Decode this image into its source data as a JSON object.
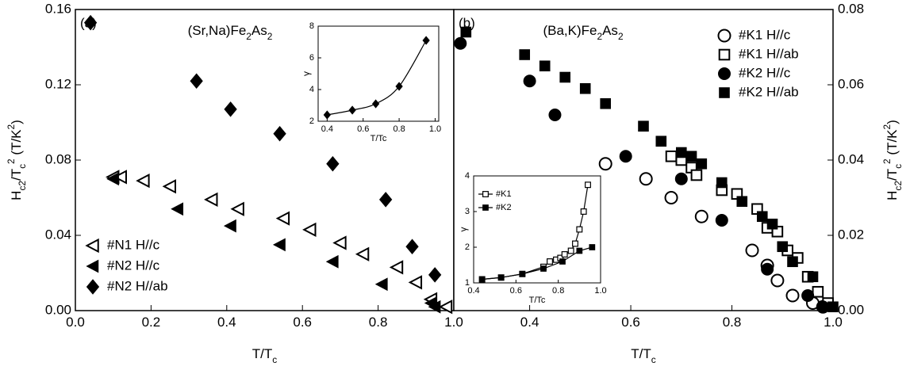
{
  "chart_data": [
    {
      "type": "scatter",
      "panel_label": "(a)",
      "title_parts": [
        "(Sr,Na)Fe",
        "2",
        "As",
        "2"
      ],
      "title_styles": [
        "normal",
        "sub",
        "normal",
        "sub"
      ],
      "xlabel_parts": [
        "T/T",
        "c"
      ],
      "xlabel_styles": [
        "normal",
        "sub"
      ],
      "ylabel_parts": [
        "H",
        "c2",
        "/T",
        "c",
        "2",
        " (T/K",
        "2",
        ")"
      ],
      "ylabel_styles": [
        "normal",
        "sub",
        "normal",
        "sub",
        "super",
        "normal",
        "super",
        "normal"
      ],
      "xlim": [
        0,
        1
      ],
      "xticks": [
        {
          "value": 0,
          "label": "0.0"
        },
        0.2,
        0.4,
        0.6,
        0.8,
        {
          "value": 1,
          "label": "1.0"
        }
      ],
      "ylim": [
        0,
        0.16
      ],
      "yticks": [
        {
          "value": 0,
          "label": "0.00"
        },
        0.04,
        0.08,
        0.12,
        0.16
      ],
      "yaxis_side": "left",
      "legend": "lower left",
      "series": [
        {
          "name": "#N1 H//c",
          "marker": "triangle-left-open",
          "color": "#000000",
          "x": [
            0.1,
            0.12,
            0.18,
            0.25,
            0.36,
            0.43,
            0.55,
            0.62,
            0.7,
            0.76,
            0.85,
            0.9,
            0.94,
            0.98
          ],
          "values": [
            0.071,
            0.071,
            0.069,
            0.066,
            0.059,
            0.054,
            0.049,
            0.043,
            0.036,
            0.03,
            0.023,
            0.015,
            0.006,
            0.002
          ]
        },
        {
          "name": "#N2 H//c",
          "marker": "triangle-left",
          "color": "#000000",
          "x": [
            0.1,
            0.27,
            0.41,
            0.54,
            0.68,
            0.81,
            0.94,
            0.95
          ],
          "values": [
            0.07,
            0.054,
            0.045,
            0.035,
            0.026,
            0.014,
            0.004,
            0.002
          ]
        },
        {
          "name": "#N2 H//ab",
          "marker": "diamond",
          "color": "#000000",
          "x": [
            0.04,
            0.32,
            0.41,
            0.54,
            0.68,
            0.82,
            0.89,
            0.95
          ],
          "values": [
            0.153,
            0.122,
            0.107,
            0.094,
            0.078,
            0.059,
            0.034,
            0.019
          ]
        }
      ]
    },
    {
      "type": "scatter",
      "xlabel": "T/Tc",
      "ylabel": "γ",
      "xlim": [
        0.35,
        1.02
      ],
      "xticks": [
        0.4,
        0.6,
        0.8,
        {
          "value": 1,
          "label": "1.0"
        }
      ],
      "ylim": [
        2,
        8
      ],
      "yticks": [
        2,
        4,
        6,
        8
      ],
      "yaxis_side": "left",
      "series": [
        {
          "marker": "diamond",
          "color": "#000000",
          "line": "smooth",
          "x": [
            0.4,
            0.54,
            0.67,
            0.8,
            0.95
          ],
          "values": [
            2.4,
            2.7,
            3.1,
            4.2,
            7.1
          ]
        }
      ]
    },
    {
      "type": "scatter",
      "panel_label": "(b)",
      "title_parts": [
        "(Ba,K)Fe",
        "2",
        "As",
        "2"
      ],
      "title_styles": [
        "normal",
        "sub",
        "normal",
        "sub"
      ],
      "xlabel_parts": [
        "T/T",
        "c"
      ],
      "xlabel_styles": [
        "normal",
        "sub"
      ],
      "ylabel_parts": [
        "H",
        "c2",
        "/T",
        "c",
        "2",
        " (T/K",
        "2",
        ")"
      ],
      "ylabel_styles": [
        "normal",
        "sub",
        "normal",
        "sub",
        "super",
        "normal",
        "super",
        "normal"
      ],
      "xlim": [
        0.25,
        1
      ],
      "xticks": [
        0.4,
        0.6,
        0.8,
        {
          "value": 1,
          "label": "1.0"
        }
      ],
      "ylim": [
        0,
        0.08
      ],
      "yticks": [
        {
          "value": 0,
          "label": "0.00"
        },
        0.02,
        0.04,
        0.06,
        0.08
      ],
      "yaxis_side": "right",
      "legend": "upper right",
      "series": [
        {
          "name": "#K1 H//c",
          "marker": "circle-open",
          "color": "#000000",
          "x": [
            0.55,
            0.63,
            0.68,
            0.74,
            0.84,
            0.87,
            0.89,
            0.92,
            0.96,
            0.98
          ],
          "values": [
            0.039,
            0.035,
            0.03,
            0.025,
            0.016,
            0.012,
            0.008,
            0.004,
            0.002,
            0.001
          ]
        },
        {
          "name": "#K1 H//ab",
          "marker": "square-open",
          "color": "#000000",
          "x": [
            0.68,
            0.7,
            0.72,
            0.73,
            0.78,
            0.81,
            0.85,
            0.87,
            0.89,
            0.91,
            0.93,
            0.95,
            0.97,
            0.99
          ],
          "values": [
            0.041,
            0.04,
            0.038,
            0.036,
            0.032,
            0.031,
            0.027,
            0.022,
            0.021,
            0.016,
            0.014,
            0.009,
            0.005,
            0.002
          ]
        },
        {
          "name": "#K2 H//c",
          "marker": "circle",
          "color": "#000000",
          "x": [
            0.263,
            0.4,
            0.45,
            0.59,
            0.7,
            0.78,
            0.87,
            0.95,
            0.98
          ],
          "values": [
            0.071,
            0.061,
            0.052,
            0.041,
            0.035,
            0.024,
            0.011,
            0.004,
            0.001
          ]
        },
        {
          "name": "#K2 H//ab",
          "marker": "square",
          "color": "#000000",
          "x": [
            0.274,
            0.39,
            0.43,
            0.47,
            0.51,
            0.55,
            0.625,
            0.66,
            0.7,
            0.72,
            0.74,
            0.78,
            0.82,
            0.86,
            0.88,
            0.9,
            0.92,
            0.96,
            1.0
          ],
          "values": [
            0.074,
            0.068,
            0.065,
            0.062,
            0.059,
            0.055,
            0.049,
            0.045,
            0.042,
            0.041,
            0.039,
            0.034,
            0.029,
            0.025,
            0.023,
            0.017,
            0.013,
            0.009,
            0.001
          ]
        }
      ]
    },
    {
      "type": "scatter",
      "xlabel": "T/Tc",
      "ylabel": "γ",
      "xlim": [
        0.4,
        1
      ],
      "xticks": [
        0.4,
        0.6,
        0.8,
        {
          "value": 1,
          "label": "1.0"
        }
      ],
      "ylim": [
        1,
        4
      ],
      "yticks": [
        1,
        2,
        3,
        4
      ],
      "yaxis_side": "left",
      "legend": "upper left",
      "series": [
        {
          "name": "#K1",
          "marker": "square-open",
          "color": "#000000",
          "line": "straight",
          "x": [
            0.44,
            0.53,
            0.63,
            0.73,
            0.76,
            0.79,
            0.81,
            0.83,
            0.86,
            0.88,
            0.9,
            0.92,
            0.94
          ],
          "values": [
            1.1,
            1.15,
            1.25,
            1.45,
            1.6,
            1.65,
            1.7,
            1.8,
            1.9,
            2.1,
            2.5,
            3.0,
            3.75
          ]
        },
        {
          "name": "#K2",
          "marker": "square",
          "color": "#000000",
          "line": "straight",
          "x": [
            0.44,
            0.53,
            0.63,
            0.73,
            0.82,
            0.9,
            0.96
          ],
          "values": [
            1.1,
            1.15,
            1.25,
            1.4,
            1.6,
            1.9,
            2.0
          ]
        }
      ]
    }
  ]
}
